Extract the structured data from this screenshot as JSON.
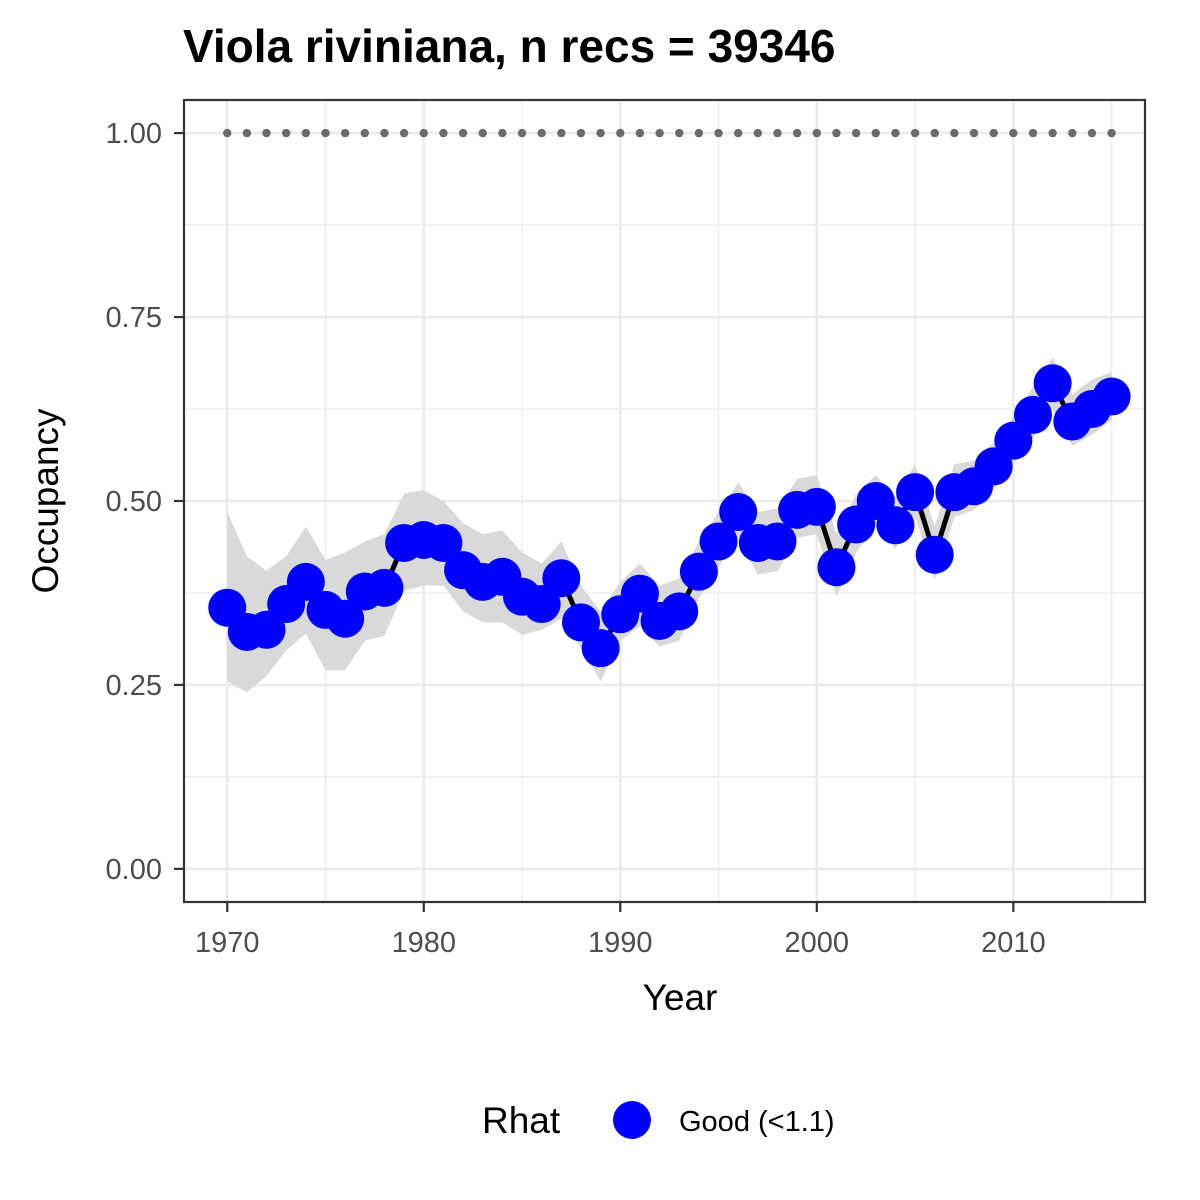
{
  "chart_data": {
    "type": "line",
    "title": "Viola riviniana, n recs = 39346",
    "xlabel": "Year",
    "ylabel": "Occupancy",
    "xlim": [
      1967.8,
      2016.7
    ],
    "ylim": [
      -0.045,
      1.045
    ],
    "x_ticks": [
      1970,
      1980,
      1990,
      2000,
      2010
    ],
    "x_tick_labels": [
      "1970",
      "1980",
      "1990",
      "2000",
      "2010"
    ],
    "y_ticks": [
      0.0,
      0.25,
      0.5,
      0.75,
      1.0
    ],
    "y_tick_labels": [
      "0.00",
      "0.25",
      "0.50",
      "0.75",
      "1.00"
    ],
    "grid": true,
    "legend": {
      "title": "Rhat",
      "position": "bottom",
      "entries": [
        {
          "label": "Good (<1.1)",
          "color": "#0000ff"
        }
      ]
    },
    "colors": {
      "points": "#0000ff",
      "line": "#000000",
      "ribbon": "#d9d9d9",
      "reference": "#6b6b6b",
      "panel_border": "#333333",
      "grid": "#ebebeb"
    },
    "series": [
      {
        "x": [
          1970,
          1971,
          1972,
          1973,
          1974,
          1975,
          1976,
          1977,
          1978,
          1979,
          1980,
          1981,
          1982,
          1983,
          1984,
          1985,
          1986,
          1987,
          1988,
          1989,
          1990,
          1991,
          1992,
          1993,
          1994,
          1995,
          1996,
          1997,
          1998,
          1999,
          2000,
          2001,
          2002,
          2003,
          2004,
          2005,
          2006,
          2007,
          2008,
          2009,
          2010,
          2011,
          2012,
          2013,
          2014,
          2015
        ],
        "values": [
          0.355,
          0.322,
          0.325,
          0.36,
          0.39,
          0.352,
          0.34,
          0.377,
          0.382,
          0.443,
          0.447,
          0.443,
          0.406,
          0.39,
          0.397,
          0.37,
          0.36,
          0.395,
          0.335,
          0.3,
          0.346,
          0.374,
          0.337,
          0.35,
          0.404,
          0.445,
          0.485,
          0.443,
          0.445,
          0.488,
          0.492,
          0.41,
          0.468,
          0.5,
          0.467,
          0.512,
          0.427,
          0.512,
          0.52,
          0.547,
          0.582,
          0.617,
          0.66,
          0.608,
          0.625,
          0.642
        ],
        "lower": [
          0.255,
          0.24,
          0.262,
          0.297,
          0.32,
          0.27,
          0.27,
          0.31,
          0.317,
          0.378,
          0.385,
          0.385,
          0.35,
          0.335,
          0.335,
          0.318,
          0.325,
          0.34,
          0.3,
          0.255,
          0.31,
          0.33,
          0.302,
          0.31,
          0.368,
          0.41,
          0.45,
          0.4,
          0.405,
          0.45,
          0.455,
          0.37,
          0.43,
          0.465,
          0.435,
          0.48,
          0.393,
          0.478,
          0.488,
          0.515,
          0.55,
          0.585,
          0.625,
          0.575,
          0.59,
          0.61
        ],
        "upper": [
          0.485,
          0.425,
          0.405,
          0.425,
          0.465,
          0.42,
          0.43,
          0.445,
          0.455,
          0.51,
          0.515,
          0.5,
          0.47,
          0.455,
          0.46,
          0.43,
          0.415,
          0.445,
          0.385,
          0.35,
          0.39,
          0.415,
          0.385,
          0.395,
          0.445,
          0.485,
          0.525,
          0.485,
          0.49,
          0.53,
          0.535,
          0.455,
          0.51,
          0.535,
          0.505,
          0.55,
          0.465,
          0.55,
          0.555,
          0.58,
          0.615,
          0.655,
          0.695,
          0.645,
          0.665,
          0.675
        ]
      },
      {
        "name": "reference",
        "x": [
          1970,
          1971,
          1972,
          1973,
          1974,
          1975,
          1976,
          1977,
          1978,
          1979,
          1980,
          1981,
          1982,
          1983,
          1984,
          1985,
          1986,
          1987,
          1988,
          1989,
          1990,
          1991,
          1992,
          1993,
          1994,
          1995,
          1996,
          1997,
          1998,
          1999,
          2000,
          2001,
          2002,
          2003,
          2004,
          2005,
          2006,
          2007,
          2008,
          2009,
          2010,
          2011,
          2012,
          2013,
          2014,
          2015
        ],
        "values": [
          1,
          1,
          1,
          1,
          1,
          1,
          1,
          1,
          1,
          1,
          1,
          1,
          1,
          1,
          1,
          1,
          1,
          1,
          1,
          1,
          1,
          1,
          1,
          1,
          1,
          1,
          1,
          1,
          1,
          1,
          1,
          1,
          1,
          1,
          1,
          1,
          1,
          1,
          1,
          1,
          1,
          1,
          1,
          1,
          1,
          1
        ]
      }
    ]
  }
}
